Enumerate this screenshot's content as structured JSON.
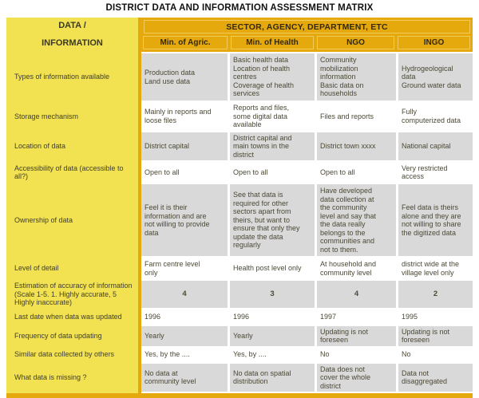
{
  "title": "DISTRICT DATA AND INFORMATION ASSESSMENT MATRIX",
  "header": {
    "corner_line1": "DATA /",
    "corner_line2": "INFORMATION",
    "sector_title": "SECTOR, AGENCY, DEPARTMENT, ETC",
    "columns": [
      "Min. of Agric.",
      "Min. of Health",
      "NGO",
      "INGO"
    ]
  },
  "rows": [
    {
      "label": "Types of information available",
      "cells": [
        "Production data\nLand use data",
        "Basic health data\nLocation of health\ncentres\nCoverage of health\nservices",
        "Community\nmobilization\ninformation\nBasic data on\nhouseholds",
        "Hydrogeological\ndata\nGround water data"
      ]
    },
    {
      "label": "Storage mechanism",
      "cells": [
        "Mainly in reports and\nloose files",
        "Reports and files,\nsome digital data\navailable",
        "Files and reports",
        "Fully\ncomputerized data"
      ]
    },
    {
      "label": "Location of data",
      "cells": [
        "District capital",
        "District capital and\nmain towns in the\ndistrict",
        "District town xxxx",
        "National capital"
      ]
    },
    {
      "label": "Accessibility of data (accessible to all?)",
      "cells": [
        "Open to all",
        "Open to all",
        "Open to all",
        "Very restricted\naccess"
      ]
    },
    {
      "label": "Ownership of data",
      "cells": [
        "Feel it is their\ninformation and are\nnot willing to provide\ndata",
        "See that data is\nrequired for other\nsectors apart from\ntheirs, but want to\nensure that only they\nupdate the data\nregularly",
        "Have developed\ndata collection at\nthe community\nlevel and say that\nthe data really\nbelongs to the\ncommunities and\nnot to them.",
        "Feel data is theirs\nalone and they are\nnot willing to share\nthe digitized data"
      ]
    },
    {
      "label": "Level of detail",
      "cells": [
        "Farm centre level\nonly",
        "Health post level only",
        "At household and\ncommunity level",
        "district wide at the\nvillage level only"
      ]
    },
    {
      "label": "Estimation of accuracy of information (Scale 1-5. 1. Highly accurate, 5 Highly inaccurate)",
      "cells": [
        "4",
        "3",
        "4",
        "2"
      ]
    },
    {
      "label": "Last date when data was updated",
      "cells": [
        "1996",
        "1996",
        "1997",
        "1995"
      ]
    },
    {
      "label": "Frequency of data updating",
      "cells": [
        "Yearly",
        "Yearly",
        "Updating is not\nforeseen",
        "Updating is not\nforeseen"
      ]
    },
    {
      "label": "Similar data collected by others",
      "cells": [
        "Yes, by the ....",
        "Yes, by ....",
        "No",
        "No"
      ]
    },
    {
      "label": "What data is missing ?",
      "cells": [
        "No data at\ncommunity level",
        "No data on spatial\ndistribution",
        "Data does not\ncover the whole\ndistrict",
        "Data not\ndisaggregated"
      ]
    }
  ],
  "colors": {
    "header_orange": "#E5A90E",
    "left_column_yellow": "#F2E150",
    "row_gray": "#D9D9D9",
    "inner_border_light": "#F2CB5A"
  }
}
